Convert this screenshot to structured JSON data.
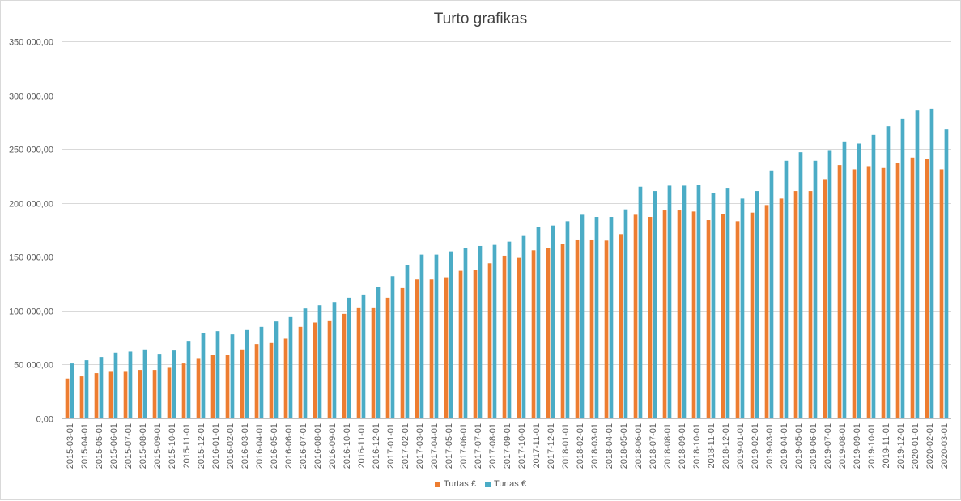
{
  "chart_data": {
    "type": "bar",
    "title": "Turto grafikas",
    "xlabel": "",
    "ylabel": "",
    "ylim": [
      0,
      350000
    ],
    "yticks": [
      "0,00",
      "50 000,00",
      "100 000,00",
      "150 000,00",
      "200 000,00",
      "250 000,00",
      "300 000,00",
      "350 000,00"
    ],
    "ytick_values": [
      0,
      50000,
      100000,
      150000,
      200000,
      250000,
      300000,
      350000
    ],
    "grid": true,
    "legend_position": "bottom",
    "categories": [
      "2015-03-01",
      "2015-04-01",
      "2015-05-01",
      "2015-06-01",
      "2015-07-01",
      "2015-08-01",
      "2015-09-01",
      "2015-10-01",
      "2015-11-01",
      "2015-12-01",
      "2016-01-01",
      "2016-02-01",
      "2016-03-01",
      "2016-04-01",
      "2016-05-01",
      "2016-06-01",
      "2016-07-01",
      "2016-08-01",
      "2016-09-01",
      "2016-10-01",
      "2016-11-01",
      "2016-12-01",
      "2017-01-01",
      "2017-02-01",
      "2017-03-01",
      "2017-04-01",
      "2017-05-01",
      "2017-06-01",
      "2017-07-01",
      "2017-08-01",
      "2017-09-01",
      "2017-10-01",
      "2017-11-01",
      "2017-12-01",
      "2018-01-01",
      "2018-02-01",
      "2018-03-01",
      "2018-04-01",
      "2018-05-01",
      "2018-06-01",
      "2018-07-01",
      "2018-08-01",
      "2018-09-01",
      "2018-10-01",
      "2018-11-01",
      "2018-12-01",
      "2019-01-01",
      "2019-02-01",
      "2019-03-01",
      "2019-04-01",
      "2019-05-01",
      "2019-06-01",
      "2019-07-01",
      "2019-08-01",
      "2019-09-01",
      "2019-10-01",
      "2019-11-01",
      "2019-12-01",
      "2020-01-01",
      "2020-02-01",
      "2020-03-01"
    ],
    "series": [
      {
        "name": "Turtas £",
        "color": "#ed7d31",
        "values": [
          37000,
          39000,
          42000,
          44000,
          44000,
          45000,
          45000,
          47000,
          51000,
          56000,
          59000,
          59000,
          64000,
          69000,
          70000,
          74000,
          85000,
          89000,
          91000,
          97000,
          103000,
          103000,
          112000,
          121000,
          129000,
          129000,
          131000,
          137000,
          138000,
          144000,
          151000,
          149000,
          156000,
          158000,
          162000,
          166000,
          166000,
          165000,
          171000,
          189000,
          187000,
          193000,
          193000,
          192000,
          184000,
          190000,
          183000,
          191000,
          198000,
          204000,
          211000,
          211000,
          222000,
          235000,
          231000,
          234000,
          233000,
          237000,
          242000,
          241000,
          231000
        ]
      },
      {
        "name": "Turtas €",
        "color": "#4bacc6",
        "values": [
          51000,
          54000,
          57000,
          61000,
          62000,
          64000,
          60000,
          63000,
          72000,
          79000,
          81000,
          78000,
          82000,
          85000,
          90000,
          94000,
          102000,
          105000,
          108000,
          112000,
          115000,
          122000,
          132000,
          142000,
          152000,
          152000,
          155000,
          158000,
          160000,
          161000,
          164000,
          170000,
          178000,
          179000,
          183000,
          189000,
          187000,
          187000,
          194000,
          215000,
          211000,
          216000,
          216000,
          217000,
          209000,
          214000,
          204000,
          211000,
          230000,
          239000,
          247000,
          239000,
          249000,
          257000,
          255000,
          263000,
          271000,
          278000,
          286000,
          287000,
          268000
        ]
      }
    ]
  }
}
